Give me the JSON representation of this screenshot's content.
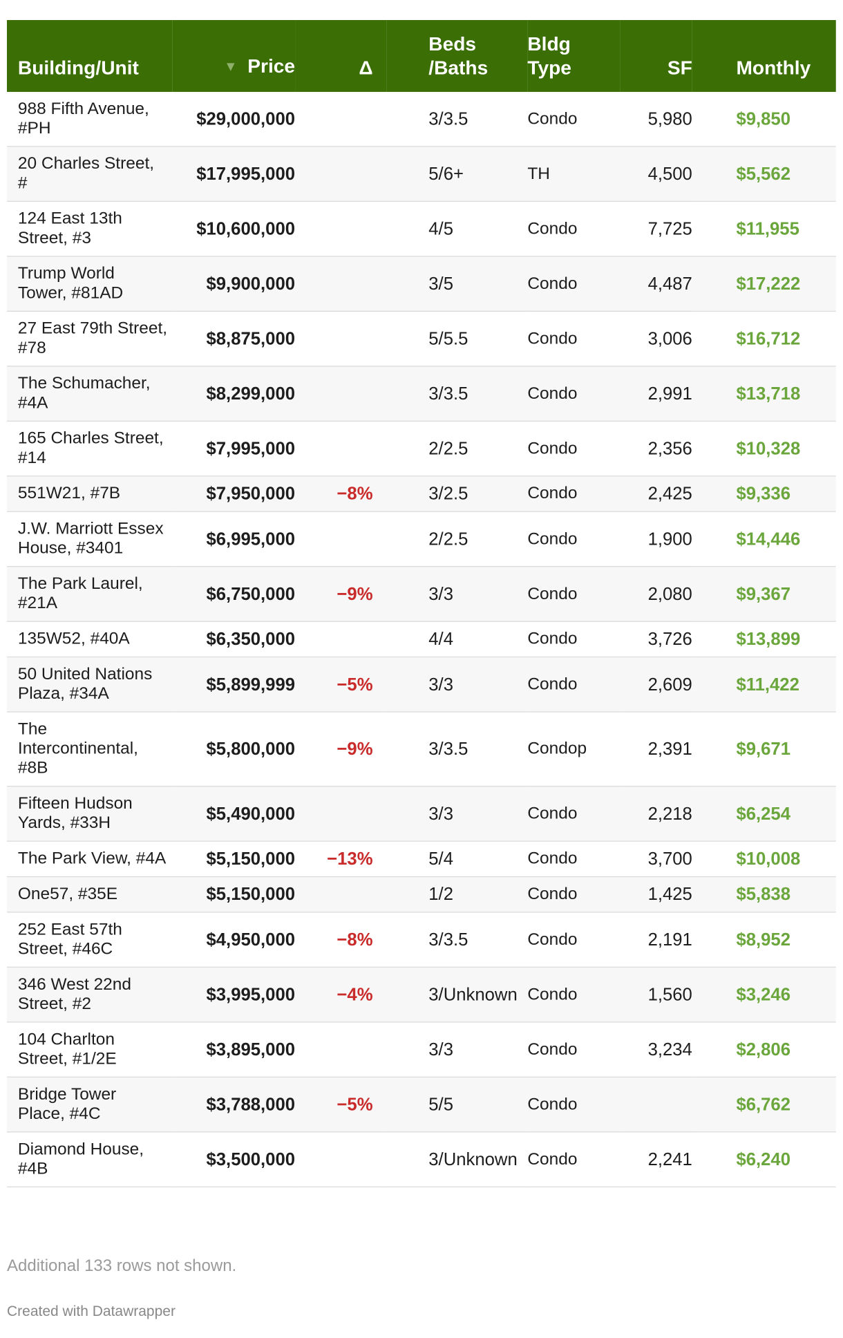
{
  "table": {
    "headers": {
      "building": "Building/Unit",
      "price": "Price",
      "delta": "Δ",
      "beds_line1": "Beds",
      "beds_line2": "/Baths",
      "type_line1": "Bldg",
      "type_line2": "Type",
      "sf": "SF",
      "monthly": "Monthly"
    },
    "sort_indicator": "▼",
    "rows": [
      {
        "building": "988 Fifth Avenue, #PH",
        "price": "$29,000,000",
        "delta": "",
        "beds_baths": "3/3.5",
        "type": "Condo",
        "sf": "5,980",
        "monthly": "$9,850"
      },
      {
        "building": "20 Charles Street, #",
        "price": "$17,995,000",
        "delta": "",
        "beds_baths": "5/6+",
        "type": "TH",
        "sf": "4,500",
        "monthly": "$5,562"
      },
      {
        "building": "124 East 13th Street, #3",
        "price": "$10,600,000",
        "delta": "",
        "beds_baths": "4/5",
        "type": "Condo",
        "sf": "7,725",
        "monthly": "$11,955"
      },
      {
        "building": "Trump World Tower, #81AD",
        "price": "$9,900,000",
        "delta": "",
        "beds_baths": "3/5",
        "type": "Condo",
        "sf": "4,487",
        "monthly": "$17,222"
      },
      {
        "building": "27 East 79th Street, #78",
        "price": "$8,875,000",
        "delta": "",
        "beds_baths": "5/5.5",
        "type": "Condo",
        "sf": "3,006",
        "monthly": "$16,712"
      },
      {
        "building": "The Schumacher, #4A",
        "price": "$8,299,000",
        "delta": "",
        "beds_baths": "3/3.5",
        "type": "Condo",
        "sf": "2,991",
        "monthly": "$13,718"
      },
      {
        "building": "165 Charles Street, #14",
        "price": "$7,995,000",
        "delta": "",
        "beds_baths": "2/2.5",
        "type": "Condo",
        "sf": "2,356",
        "monthly": "$10,328"
      },
      {
        "building": "551W21, #7B",
        "price": "$7,950,000",
        "delta": "−8%",
        "beds_baths": "3/2.5",
        "type": "Condo",
        "sf": "2,425",
        "monthly": "$9,336"
      },
      {
        "building": "J.W. Marriott Essex House, #3401",
        "price": "$6,995,000",
        "delta": "",
        "beds_baths": "2/2.5",
        "type": "Condo",
        "sf": "1,900",
        "monthly": "$14,446"
      },
      {
        "building": "The Park Laurel, #21A",
        "price": "$6,750,000",
        "delta": "−9%",
        "beds_baths": "3/3",
        "type": "Condo",
        "sf": "2,080",
        "monthly": "$9,367"
      },
      {
        "building": "135W52, #40A",
        "price": "$6,350,000",
        "delta": "",
        "beds_baths": "4/4",
        "type": "Condo",
        "sf": "3,726",
        "monthly": "$13,899"
      },
      {
        "building": "50 United Nations Plaza, #34A",
        "price": "$5,899,999",
        "delta": "−5%",
        "beds_baths": "3/3",
        "type": "Condo",
        "sf": "2,609",
        "monthly": "$11,422"
      },
      {
        "building": "The Intercontinental, #8B",
        "price": "$5,800,000",
        "delta": "−9%",
        "beds_baths": "3/3.5",
        "type": "Condop",
        "sf": "2,391",
        "monthly": "$9,671"
      },
      {
        "building": "Fifteen Hudson Yards, #33H",
        "price": "$5,490,000",
        "delta": "",
        "beds_baths": "3/3",
        "type": "Condo",
        "sf": "2,218",
        "monthly": "$6,254"
      },
      {
        "building": "The Park View, #4A",
        "price": "$5,150,000",
        "delta": "−13%",
        "beds_baths": "5/4",
        "type": "Condo",
        "sf": "3,700",
        "monthly": "$10,008"
      },
      {
        "building": "One57, #35E",
        "price": "$5,150,000",
        "delta": "",
        "beds_baths": "1/2",
        "type": "Condo",
        "sf": "1,425",
        "monthly": "$5,838"
      },
      {
        "building": "252 East 57th Street, #46C",
        "price": "$4,950,000",
        "delta": "−8%",
        "beds_baths": "3/3.5",
        "type": "Condo",
        "sf": "2,191",
        "monthly": "$8,952"
      },
      {
        "building": "346 West 22nd Street, #2",
        "price": "$3,995,000",
        "delta": "−4%",
        "beds_baths": "3/Unknown",
        "type": "Condo",
        "sf": "1,560",
        "monthly": "$3,246"
      },
      {
        "building": "104 Charlton Street, #1/2E",
        "price": "$3,895,000",
        "delta": "",
        "beds_baths": "3/3",
        "type": "Condo",
        "sf": "3,234",
        "monthly": "$2,806"
      },
      {
        "building": "Bridge Tower Place, #4C",
        "price": "$3,788,000",
        "delta": "−5%",
        "beds_baths": "5/5",
        "type": "Condo",
        "sf": "",
        "monthly": "$6,762"
      },
      {
        "building": "Diamond House, #4B",
        "price": "$3,500,000",
        "delta": "",
        "beds_baths": "3/Unknown",
        "type": "Condo",
        "sf": "2,241",
        "monthly": "$6,240"
      }
    ]
  },
  "footnote": "Additional 133 rows not shown.",
  "credit": "Created with Datawrapper",
  "colors": {
    "header_bg": "#3b6e05",
    "negative_delta": "#c92a2a",
    "monthly_green": "#6aa63b"
  }
}
